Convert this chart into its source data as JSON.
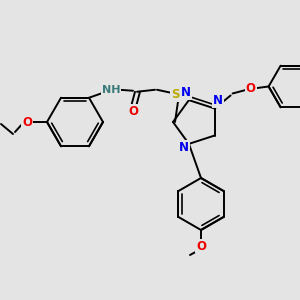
{
  "bg_color": "#e4e4e4",
  "bond_color": "#000000",
  "bond_width": 1.4,
  "atom_colors": {
    "N": "#0000ee",
    "O": "#ee0000",
    "S": "#bbaa00",
    "H": "#3a7a7a",
    "C": "#000000"
  },
  "font_size": 8.5
}
